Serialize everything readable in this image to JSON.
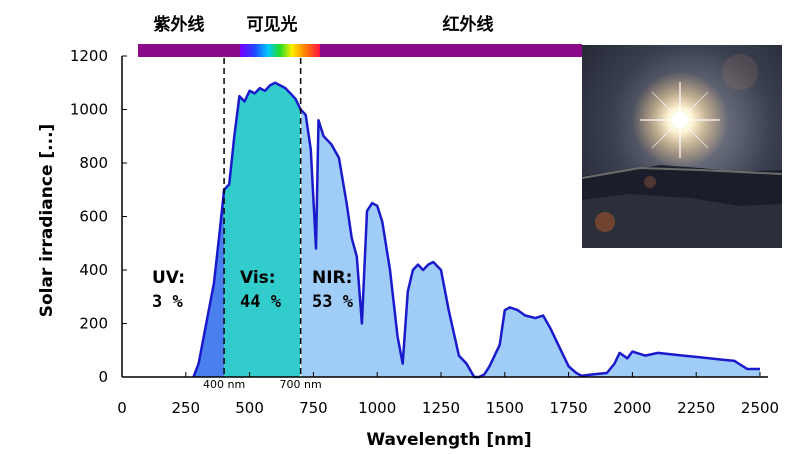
{
  "chart_data": {
    "type": "area",
    "xlabel": "Wavelength [nm]",
    "ylabel": "Solar irradiance [...]",
    "xlim": [
      0,
      2500
    ],
    "ylim": [
      0,
      1200
    ],
    "x_ticks": [
      "0",
      "250",
      "500",
      "750",
      "1000",
      "1250",
      "1500",
      "1750",
      "2000",
      "2250",
      "2500"
    ],
    "y_ticks": [
      "0",
      "200",
      "400",
      "600",
      "800",
      "1000",
      "1200"
    ],
    "grid": false,
    "spectrum": {
      "x": [
        280,
        300,
        320,
        340,
        360,
        380,
        400,
        420,
        440,
        460,
        480,
        500,
        520,
        540,
        560,
        580,
        600,
        620,
        640,
        660,
        680,
        700,
        720,
        740,
        760,
        770,
        790,
        820,
        850,
        880,
        900,
        920,
        940,
        960,
        980,
        1000,
        1020,
        1050,
        1080,
        1100,
        1120,
        1140,
        1160,
        1180,
        1200,
        1220,
        1250,
        1280,
        1320,
        1350,
        1380,
        1400,
        1420,
        1440,
        1460,
        1480,
        1500,
        1520,
        1550,
        1580,
        1620,
        1650,
        1680,
        1720,
        1750,
        1780,
        1800,
        1850,
        1900,
        1930,
        1950,
        1980,
        2000,
        2050,
        2100,
        2150,
        2200,
        2250,
        2300,
        2350,
        2400,
        2450,
        2500
      ],
      "y": [
        0,
        50,
        150,
        250,
        350,
        520,
        700,
        720,
        900,
        1050,
        1030,
        1070,
        1060,
        1080,
        1070,
        1090,
        1100,
        1090,
        1080,
        1060,
        1040,
        1000,
        980,
        850,
        480,
        960,
        900,
        870,
        820,
        650,
        520,
        450,
        200,
        620,
        650,
        640,
        580,
        400,
        150,
        50,
        320,
        400,
        420,
        400,
        420,
        430,
        400,
        250,
        80,
        50,
        0,
        0,
        10,
        40,
        80,
        120,
        250,
        260,
        250,
        230,
        220,
        230,
        180,
        100,
        40,
        15,
        5,
        10,
        15,
        50,
        90,
        70,
        95,
        80,
        90,
        85,
        80,
        75,
        70,
        65,
        60,
        30,
        30
      ]
    },
    "regions": [
      {
        "name": "UV:",
        "percent": "3 %",
        "range": [
          280,
          400
        ],
        "color": "#4a7fee"
      },
      {
        "name": "Vis:",
        "percent": "44 %",
        "range": [
          400,
          700
        ],
        "color": "#33cccc"
      },
      {
        "name": "NIR:",
        "percent": "53 %",
        "range": [
          700,
          2500
        ],
        "color": "#9fcdf8"
      }
    ],
    "boundary_labels": [
      "400 nm",
      "700 nm"
    ],
    "top_band": {
      "labels": [
        "紫外线",
        "可见光",
        "红外线"
      ],
      "color": "#8a0a8a"
    },
    "outline_color": "#1a1acc"
  },
  "photo": {
    "description_name": "sun-photo"
  }
}
